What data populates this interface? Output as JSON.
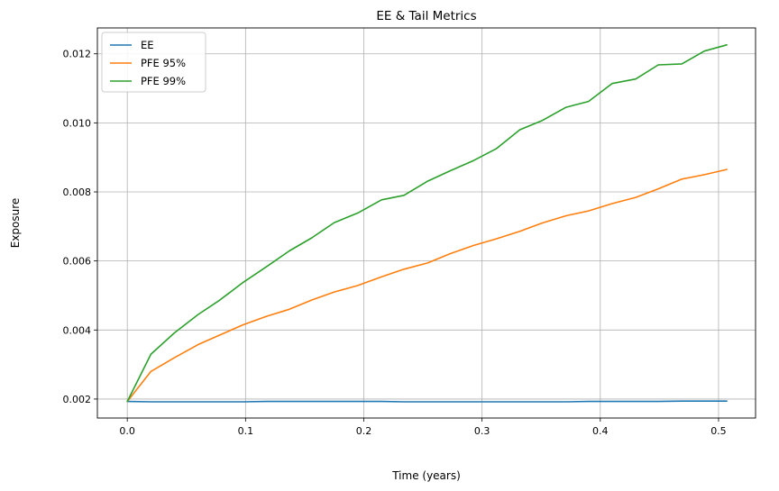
{
  "chart_data": {
    "type": "line",
    "title": "EE & Tail Metrics",
    "xlabel": "Time (years)",
    "ylabel": "Exposure",
    "xlim": [
      -0.0253,
      0.5313
    ],
    "ylim": [
      0.00145,
      0.01275
    ],
    "x_ticks": [
      0.0,
      0.1,
      0.2,
      0.3,
      0.4,
      0.5
    ],
    "x_tick_labels": [
      "0.0",
      "0.1",
      "0.2",
      "0.3",
      "0.4",
      "0.5"
    ],
    "y_ticks": [
      0.002,
      0.004,
      0.006,
      0.008,
      0.01,
      0.012
    ],
    "y_tick_labels": [
      "0.002",
      "0.004",
      "0.006",
      "0.008",
      "0.010",
      "0.012"
    ],
    "grid": true,
    "legend_position": "upper-left",
    "x": [
      0.0,
      0.02,
      0.04,
      0.06,
      0.078,
      0.098,
      0.118,
      0.137,
      0.156,
      0.175,
      0.195,
      0.215,
      0.234,
      0.254,
      0.273,
      0.293,
      0.312,
      0.332,
      0.351,
      0.371,
      0.39,
      0.41,
      0.43,
      0.449,
      0.469,
      0.488,
      0.507
    ],
    "series": [
      {
        "name": "EE",
        "color": "#1f77b4",
        "values": [
          0.00193,
          0.00192,
          0.00192,
          0.00192,
          0.00192,
          0.00192,
          0.00193,
          0.00193,
          0.00193,
          0.00193,
          0.00193,
          0.00193,
          0.00192,
          0.00192,
          0.00192,
          0.00192,
          0.00192,
          0.00192,
          0.00192,
          0.00192,
          0.00193,
          0.00193,
          0.00193,
          0.00193,
          0.00194,
          0.00194,
          0.00194
        ]
      },
      {
        "name": "PFE 95%",
        "color": "#ff7f0e",
        "values": [
          0.00193,
          0.0028,
          0.0032,
          0.00358,
          0.00385,
          0.00415,
          0.0044,
          0.0046,
          0.00487,
          0.0051,
          0.00529,
          0.00554,
          0.00576,
          0.00594,
          0.00621,
          0.00645,
          0.00664,
          0.00686,
          0.0071,
          0.00731,
          0.00745,
          0.00766,
          0.00784,
          0.00809,
          0.00837,
          0.0085,
          0.00865
        ]
      },
      {
        "name": "PFE 99%",
        "color": "#2ca02c",
        "values": [
          0.00193,
          0.0033,
          0.00392,
          0.00445,
          0.00486,
          0.00538,
          0.00584,
          0.00629,
          0.00667,
          0.00711,
          0.00739,
          0.00777,
          0.0079,
          0.00831,
          0.00861,
          0.00891,
          0.00925,
          0.0098,
          0.01007,
          0.01045,
          0.01062,
          0.01114,
          0.01127,
          0.01168,
          0.01171,
          0.01208,
          0.01226
        ]
      }
    ]
  }
}
